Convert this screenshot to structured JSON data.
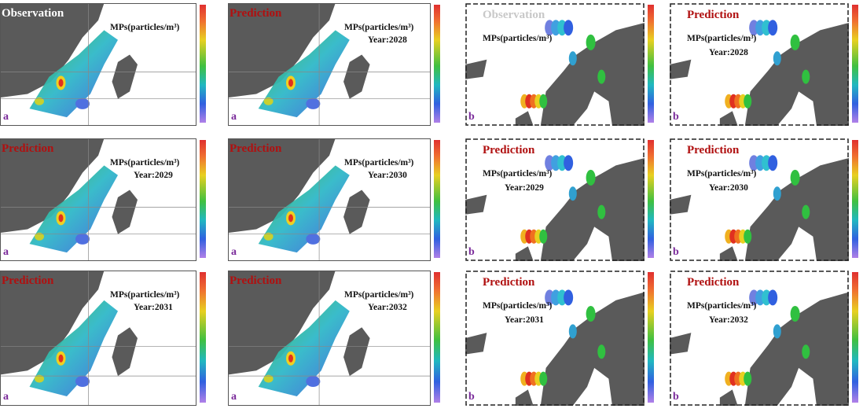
{
  "figure": {
    "panels": [
      {
        "id": "a-obs",
        "region": "a",
        "title": "Observation",
        "title_style": "obs-a",
        "mps": "MPs(particles/m³)",
        "year": "",
        "letter": "a"
      },
      {
        "id": "a-2028",
        "region": "a",
        "title": "Prediction",
        "title_style": "pred",
        "mps": "MPs(particles/m³)",
        "year": "Year:2028",
        "letter": "a"
      },
      {
        "id": "b-obs",
        "region": "b",
        "title": "Observation",
        "title_style": "obs-b",
        "mps": "MPs(particles/m³)",
        "year": "",
        "letter": "b"
      },
      {
        "id": "b-2028",
        "region": "b",
        "title": "Prediction",
        "title_style": "pred",
        "mps": "MPs(particles/m³)",
        "year": "Year:2028",
        "letter": "b"
      },
      {
        "id": "a-2029",
        "region": "a",
        "title": "Prediction",
        "title_style": "pred",
        "mps": "MPs(particles/m³)",
        "year": "Year:2029",
        "letter": "a"
      },
      {
        "id": "a-2030",
        "region": "a",
        "title": "Prediction",
        "title_style": "pred",
        "mps": "MPs(particles/m³)",
        "year": "Year:2030",
        "letter": "a"
      },
      {
        "id": "b-2029",
        "region": "b",
        "title": "Prediction",
        "title_style": "pred",
        "mps": "MPs(particles/m³)",
        "year": "Year:2029",
        "letter": "b"
      },
      {
        "id": "b-2030",
        "region": "b",
        "title": "Prediction",
        "title_style": "pred",
        "mps": "MPs(particles/m³)",
        "year": "Year:2030",
        "letter": "b"
      },
      {
        "id": "a-2031",
        "region": "a",
        "title": "Prediction",
        "title_style": "pred",
        "mps": "MPs(particles/m³)",
        "year": "Year:2031",
        "letter": "a"
      },
      {
        "id": "a-2032",
        "region": "a",
        "title": "Prediction",
        "title_style": "pred",
        "mps": "MPs(particles/m³)",
        "year": "Year:2032",
        "letter": "a"
      },
      {
        "id": "b-2031",
        "region": "b",
        "title": "Prediction",
        "title_style": "pred",
        "mps": "MPs(particles/m³)",
        "year": "Year:2031",
        "letter": "b"
      },
      {
        "id": "b-2032",
        "region": "b",
        "title": "Prediction",
        "title_style": "pred",
        "mps": "MPs(particles/m³)",
        "year": "Year:2032",
        "letter": "b"
      }
    ],
    "colors": {
      "land": "#5a5a5a",
      "sea": "#ffffff",
      "title_prediction": "#b01010",
      "title_observation_b": "#c8c8c8",
      "letter": "#7a2a9a"
    }
  }
}
